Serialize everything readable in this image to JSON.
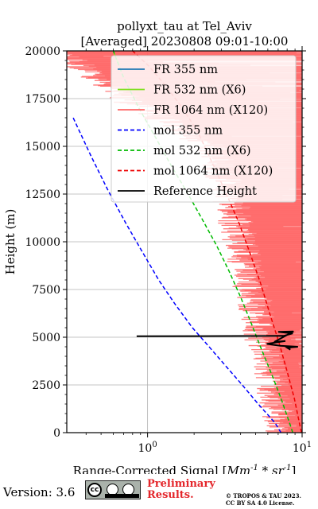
{
  "chart_data": {
    "type": "line",
    "title": "pollyxt_tau at Tel_Aviv",
    "subtitle": "[Averaged] 20230808 09:01-10:00",
    "xlabel": "Range-Corrected Signal [Mm^-1 * sr^-1]",
    "ylabel": "Height (m)",
    "xscale": "log",
    "xlim": [
      0.3,
      10
    ],
    "ylim": [
      0,
      20000
    ],
    "x_ticks": [
      1,
      10
    ],
    "x_ticklabels": [
      "10^0",
      "10^1"
    ],
    "y_ticks": [
      0,
      2500,
      5000,
      7500,
      10000,
      12500,
      15000,
      17500,
      20000
    ],
    "grid": true,
    "legend_position": "top-center",
    "series": [
      {
        "name": "FR 355 nm",
        "color": "#1f77b4",
        "style": "solid",
        "x": [],
        "y": []
      },
      {
        "name": "FR 532 nm (X6)",
        "color": "#80df20",
        "style": "solid",
        "x": [
          0.6,
          0.62,
          0.65
        ],
        "y": [
          20000,
          19700,
          19300
        ]
      },
      {
        "name": "FR 1064 nm (X120)",
        "color": "#ff6666",
        "style": "solid",
        "x": [
          10,
          9.5,
          9,
          8.5,
          8,
          7.5,
          7,
          6.5,
          6,
          5.5,
          5,
          4.5,
          3.5,
          1.0,
          0.35
        ],
        "y": [
          0,
          1500,
          2500,
          3500,
          4400,
          5200,
          6500,
          7500,
          8500,
          10000,
          11500,
          13000,
          15000,
          17500,
          20000
        ]
      },
      {
        "name": "mol 355 nm",
        "color": "#0000ff",
        "style": "dashed",
        "x": [
          7.3,
          6.7,
          5.2,
          4.1,
          3.2,
          2.5,
          1.95,
          1.5,
          1.18,
          0.92,
          0.72,
          0.55,
          0.43,
          0.33
        ],
        "y": [
          0,
          500,
          1500,
          2500,
          3500,
          4500,
          5500,
          6750,
          8000,
          9500,
          11000,
          12750,
          14500,
          16500
        ]
      },
      {
        "name": "mol 532 nm (X6)",
        "color": "#00bb00",
        "style": "dashed",
        "x": [
          8.7,
          8.3,
          7.3,
          6.4,
          5.5,
          4.7,
          4.0,
          3.35,
          2.8,
          2.25,
          1.8,
          1.42,
          1.12,
          0.88,
          0.7,
          0.6
        ],
        "y": [
          0,
          500,
          1800,
          3000,
          4300,
          5700,
          7100,
          8500,
          9800,
          11200,
          12600,
          14000,
          15500,
          17000,
          18600,
          20000
        ]
      },
      {
        "name": "mol 1064 nm (X120)",
        "color": "#ee0000",
        "style": "dashed",
        "x": [
          9.9,
          9.6,
          8.9,
          8.0,
          7.1,
          6.2,
          5.4,
          4.6,
          3.9,
          3.2,
          2.6,
          2.1,
          1.65,
          1.3,
          1.02,
          0.8
        ],
        "y": [
          0,
          500,
          1800,
          3200,
          4700,
          6200,
          7800,
          9400,
          11000,
          12600,
          14200,
          15800,
          17100,
          18200,
          19200,
          20000
        ]
      },
      {
        "name": "Reference Height",
        "color": "#000000",
        "style": "solid",
        "x": [
          0.85,
          7.6,
          8.7,
          7.0,
          8.8,
          6.6,
          7.8,
          5.9,
          7.2,
          9.4,
          8.0,
          8.4
        ],
        "y": [
          5050,
          5070,
          5200,
          5280,
          5300,
          4750,
          4800,
          4650,
          4550,
          4500,
          4450,
          4350
        ]
      }
    ]
  },
  "footer": {
    "version": "Version: 3.6",
    "prelim_line1": "Preliminary",
    "prelim_line2": "Results.",
    "copyright_line1": "© TROPOS & TAU 2023.",
    "copyright_line2": "CC BY SA 4.0 License."
  },
  "license_icon_names": [
    "cc-icon",
    "by-icon",
    "sa-icon"
  ]
}
